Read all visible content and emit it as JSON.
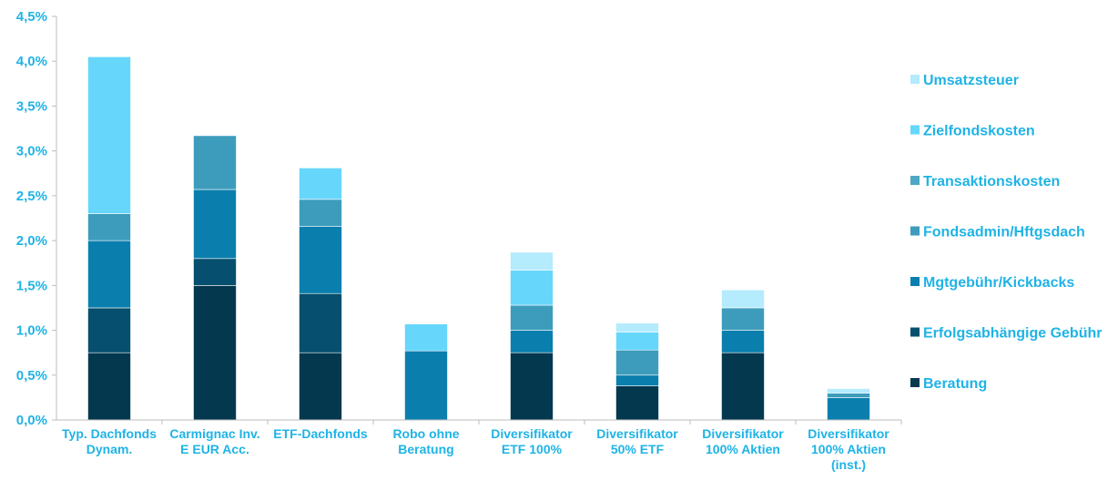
{
  "chart_data": {
    "type": "bar",
    "stacked": true,
    "title": "",
    "xlabel": "",
    "ylabel": "",
    "ylim": [
      0,
      4.5
    ],
    "yticks": [
      0,
      0.5,
      1.0,
      1.5,
      2.0,
      2.5,
      3.0,
      3.5,
      4.0,
      4.5
    ],
    "ytick_labels": [
      "0,0%",
      "0,5%",
      "1,0%",
      "1,5%",
      "2,0%",
      "2,5%",
      "3,0%",
      "3,5%",
      "4,0%",
      "4,5%"
    ],
    "grid": false,
    "legend_position": "right",
    "categories": [
      [
        "Typ. Dachfonds",
        "Dynam."
      ],
      [
        "Carmignac Inv.",
        "E EUR Acc."
      ],
      [
        "ETF-Dachfonds"
      ],
      [
        "Robo ohne",
        "Beratung"
      ],
      [
        "Diversifikator",
        "ETF 100%"
      ],
      [
        "Diversifikator",
        "50% ETF"
      ],
      [
        "Diversifikator",
        "100% Aktien"
      ],
      [
        "Diversifikator",
        "100% Aktien",
        "(inst.)"
      ]
    ],
    "series": [
      {
        "name": "Beratung",
        "color": "#04384e",
        "values": [
          0.75,
          1.5,
          0.75,
          0,
          0.75,
          0.38,
          0.75,
          0
        ]
      },
      {
        "name": "Erfolgsabhängige Gebühr",
        "color": "#064f6e",
        "values": [
          0.5,
          0.3,
          0.66,
          0,
          0,
          0,
          0,
          0
        ]
      },
      {
        "name": "Mgtgebühr/Kickbacks",
        "color": "#0a7fae",
        "values": [
          0.75,
          0.77,
          0.75,
          0.77,
          0.25,
          0.12,
          0.25,
          0.25
        ]
      },
      {
        "name": "Fondsadmin/Hftgsdach",
        "color": "#3d9cbb",
        "values": [
          0.3,
          0.6,
          0.3,
          0,
          0.28,
          0.28,
          0.25,
          0.05
        ]
      },
      {
        "name": "Transaktionskosten",
        "color": "#4ea8c5",
        "values": [
          0,
          0,
          0,
          0,
          0,
          0,
          0,
          0
        ]
      },
      {
        "name": "Zielfondskosten",
        "color": "#66d6fb",
        "values": [
          1.75,
          0,
          0.35,
          0.3,
          0.39,
          0.2,
          0,
          0
        ]
      },
      {
        "name": "Umsatzsteuer",
        "color": "#b4ebfd",
        "values": [
          0,
          0,
          0,
          0,
          0.2,
          0.1,
          0.2,
          0.05
        ]
      }
    ],
    "legend_order": [
      "Umsatzsteuer",
      "Zielfondskosten",
      "Transaktionskosten",
      "Fondsadmin/Hftgsdach",
      "Mgtgebühr/Kickbacks",
      "Erfolgsabhängige Gebühr",
      "Beratung"
    ]
  }
}
